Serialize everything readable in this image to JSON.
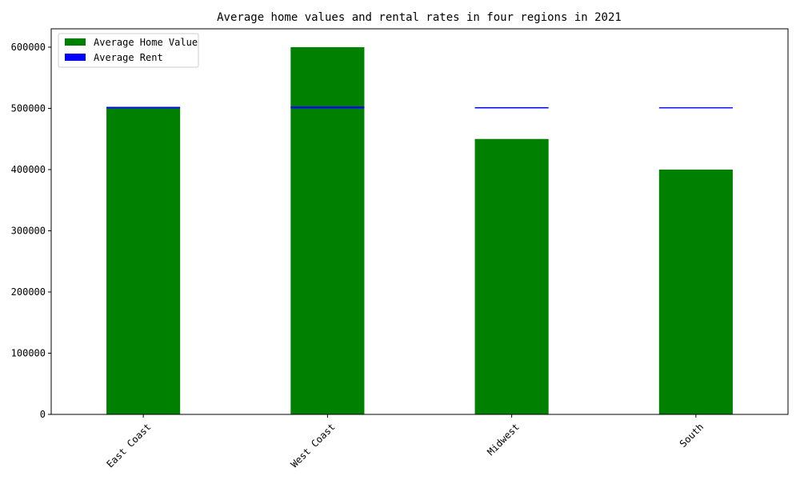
{
  "chart_data": {
    "type": "bar",
    "title": "Average home values and rental rates in four regions in 2021",
    "xlabel": "",
    "ylabel": "",
    "categories": [
      "East Coast",
      "West Coast",
      "Midwest",
      "South"
    ],
    "series": [
      {
        "name": "Average Home Value",
        "values": [
          500000,
          600000,
          450000,
          400000
        ],
        "color": "#008000"
      },
      {
        "name": "Average Rent",
        "values": [
          2500,
          3000,
          2000,
          1800
        ],
        "stacked_on": "Average Home Value",
        "color": "#0000ff"
      }
    ],
    "rent_bar_bottom": 500000,
    "ylim": [
      0,
      630000
    ],
    "yticks": [
      0,
      100000,
      200000,
      300000,
      400000,
      500000,
      600000
    ],
    "ytick_labels": [
      "0",
      "100000",
      "200000",
      "300000",
      "400000",
      "500000",
      "600000"
    ],
    "xtick_rotation": 45,
    "grid": false,
    "legend_position": "top-left"
  }
}
